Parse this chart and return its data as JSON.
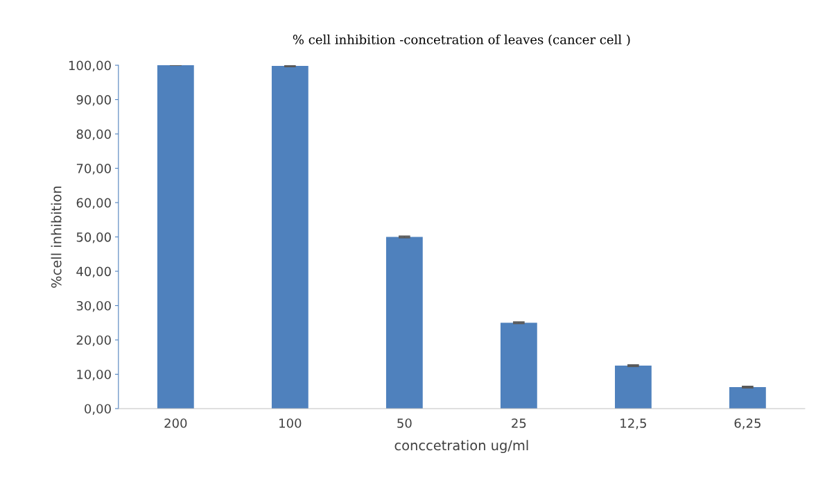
{
  "chart_data": {
    "type": "bar",
    "title": "% cell inhibition -concetration of leaves (cancer cell )",
    "xlabel": "conccetration ug/ml",
    "ylabel": "%cell inhibition",
    "categories": [
      "200",
      "100",
      "50",
      "25",
      "12,5",
      "6,25"
    ],
    "values": [
      100,
      99.8,
      50,
      25,
      12.5,
      6.25
    ],
    "errors": [
      null,
      0.2,
      0.2,
      0.2,
      0.2,
      0.2
    ],
    "color": "#4f81bd",
    "ylim": [
      0,
      100
    ],
    "yticks": [
      {
        "value": 0,
        "label": "0,00"
      },
      {
        "value": 10,
        "label": "10,00"
      },
      {
        "value": 20,
        "label": "20,00"
      },
      {
        "value": 30,
        "label": "30,00"
      },
      {
        "value": 40,
        "label": "40,00"
      },
      {
        "value": 50,
        "label": "50,00"
      },
      {
        "value": 60,
        "label": "60,00"
      },
      {
        "value": 70,
        "label": "70,00"
      },
      {
        "value": 80,
        "label": "80,00"
      },
      {
        "value": 90,
        "label": "90,00"
      },
      {
        "value": 100,
        "label": "100,00"
      }
    ],
    "grid": false,
    "legend": false
  }
}
